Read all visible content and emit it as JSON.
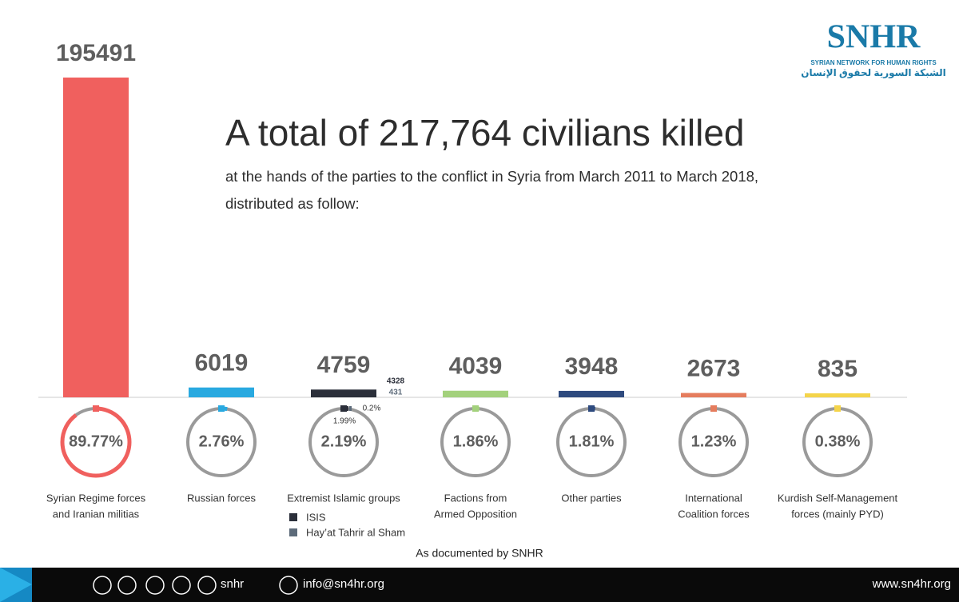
{
  "chart_data": {
    "type": "bar",
    "title": "A total of 217,764 civilians killed",
    "subtitle": [
      "at the hands of the parties to the conflict in Syria from March 2011 to March 2018,",
      "distributed as follow:"
    ],
    "categories": [
      [
        "Syrian Regime forces",
        "and Iranian militias"
      ],
      [
        "Russian forces"
      ],
      [
        "Extremist Islamic groups"
      ],
      [
        "Factions from",
        "Armed Opposition"
      ],
      [
        "Other parties"
      ],
      [
        "International",
        "Coalition forces"
      ],
      [
        "Kurdish Self-Management",
        "forces (mainly PYD)"
      ]
    ],
    "values": [
      195491,
      6019,
      4759,
      4039,
      3948,
      2673,
      835
    ],
    "colors": [
      "#f0605e",
      "#29a9e0",
      "#2b2f3a",
      "#a3d17c",
      "#2e4a7e",
      "#e57c5d",
      "#f4d44a"
    ],
    "shares": [
      89.77,
      2.76,
      2.19,
      1.86,
      1.81,
      1.23,
      0.38
    ],
    "share_labels": [
      "89.77%",
      "2.76%",
      "2.19%",
      "1.86%",
      "1.81%",
      "1.23%",
      "0.38%"
    ],
    "breakdown": [
      {
        "name": "ISIS",
        "color": "#2b2f3a",
        "value": 4328,
        "share": 1.99,
        "share_label": "1.99%"
      },
      {
        "name": "Hay’at Tahrir al Sham",
        "color": "#5d6b7a",
        "value": 431,
        "share": 0.2,
        "share_label": "0.2%"
      }
    ],
    "source": "As documented by SNHR"
  },
  "logo": {
    "name": "SNHR",
    "english": "SYRIAN NETWORK FOR HUMAN RIGHTS",
    "arabic": "الشبكة السورية لحقوق الإنسان"
  },
  "footer": {
    "handle": "snhr",
    "email": "info@sn4hr.org",
    "website": "www.sn4hr.org"
  }
}
